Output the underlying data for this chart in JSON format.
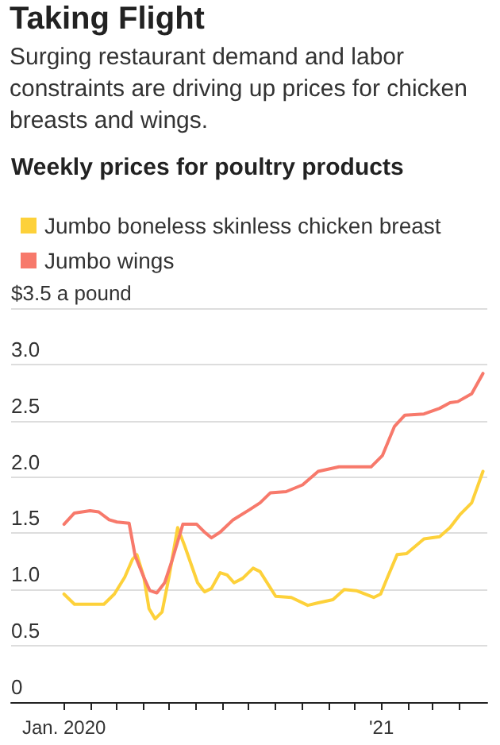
{
  "chart_data": {
    "type": "line",
    "title": "Taking Flight",
    "subtitle": "Surging restaurant demand and labor constraints are driving up prices for chicken breasts and wings.",
    "annotations": [
      "Weekly prices for poultry products"
    ],
    "legend": "top left",
    "grid": "y",
    "marker": "none",
    "line_style": "solid",
    "xlim": [
      "2019-11-01",
      "2021-05-03"
    ],
    "xticks": [
      {
        "value": "2020-01-01",
        "label": "Jan. 2020"
      },
      {
        "value": "2020-02-01",
        "label": null
      },
      {
        "value": "2020-03-01",
        "label": null
      },
      {
        "value": "2020-04-01",
        "label": null
      },
      {
        "value": "2020-05-01",
        "label": null
      },
      {
        "value": "2020-06-01",
        "label": null
      },
      {
        "value": "2020-07-01",
        "label": null
      },
      {
        "value": "2020-08-01",
        "label": null
      },
      {
        "value": "2020-09-01",
        "label": null
      },
      {
        "value": "2020-10-01",
        "label": null
      },
      {
        "value": "2020-11-01",
        "label": null
      },
      {
        "value": "2020-12-01",
        "label": null
      },
      {
        "value": "2021-01-01",
        "label": "'21"
      },
      {
        "value": "2021-02-01",
        "label": null
      },
      {
        "value": "2021-03-01",
        "label": null
      },
      {
        "value": "2021-04-01",
        "label": null
      }
    ],
    "ylim": [
      0,
      3.5
    ],
    "yticks": [
      0,
      0.5,
      {
        "value": 1,
        "label": "1.0"
      },
      1.5,
      {
        "value": 2,
        "label": "2.0"
      },
      2.5,
      {
        "value": 3,
        "label": "3.0"
      },
      {
        "value": 3.5,
        "label": "$3.5 a pound"
      }
    ],
    "series": [
      {
        "name": "Jumbo boneless skinless chicken breast",
        "color": "#fdd13a",
        "x": [
          "2020-01-01",
          "2020-01-13",
          "2020-02-16",
          "2020-02-28",
          "2020-03-11",
          "2020-03-20",
          "2020-03-25",
          "2020-04-02",
          "2020-04-08",
          "2020-04-15",
          "2020-04-23",
          "2020-05-01",
          "2020-05-11",
          "2020-05-19",
          "2020-06-03",
          "2020-06-11",
          "2020-06-19",
          "2020-06-29",
          "2020-07-07",
          "2020-07-15",
          "2020-07-25",
          "2020-08-06",
          "2020-08-14",
          "2020-09-01",
          "2020-09-19",
          "2020-10-08",
          "2020-10-19",
          "2020-11-06",
          "2020-11-19",
          "2020-12-03",
          "2020-12-23",
          "2020-12-31",
          "2021-01-08",
          "2021-01-19",
          "2021-01-30",
          "2021-02-19",
          "2021-03-09",
          "2021-03-21",
          "2021-04-02",
          "2021-04-15",
          "2021-04-28"
        ],
        "values": [
          0.96,
          0.87,
          0.87,
          0.96,
          1.11,
          1.27,
          1.31,
          1.11,
          0.83,
          0.74,
          0.8,
          1.11,
          1.55,
          1.39,
          1.06,
          0.98,
          1.01,
          1.15,
          1.13,
          1.06,
          1.1,
          1.19,
          1.16,
          0.94,
          0.93,
          0.86,
          0.88,
          0.91,
          1.0,
          0.99,
          0.93,
          0.96,
          1.11,
          1.31,
          1.32,
          1.45,
          1.47,
          1.55,
          1.67,
          1.77,
          2.05
        ]
      },
      {
        "name": "Jumbo wings",
        "color": "#f7796b",
        "x": [
          "2020-01-01",
          "2020-01-13",
          "2020-01-31",
          "2020-02-10",
          "2020-02-22",
          "2020-03-02",
          "2020-03-16",
          "2020-03-23",
          "2020-04-02",
          "2020-04-09",
          "2020-04-17",
          "2020-04-26",
          "2020-05-05",
          "2020-05-17",
          "2020-06-02",
          "2020-06-11",
          "2020-06-19",
          "2020-06-29",
          "2020-07-14",
          "2020-08-02",
          "2020-08-14",
          "2020-08-26",
          "2020-09-13",
          "2020-10-02",
          "2020-10-20",
          "2020-11-13",
          "2020-12-20",
          "2021-01-02",
          "2021-01-16",
          "2021-01-28",
          "2021-02-19",
          "2021-03-09",
          "2021-03-21",
          "2021-03-30",
          "2021-04-15",
          "2021-04-28"
        ],
        "values": [
          1.58,
          1.68,
          1.7,
          1.69,
          1.62,
          1.6,
          1.59,
          1.3,
          1.11,
          0.99,
          0.97,
          1.06,
          1.27,
          1.58,
          1.58,
          1.51,
          1.46,
          1.51,
          1.62,
          1.71,
          1.77,
          1.86,
          1.87,
          1.93,
          2.05,
          2.09,
          2.09,
          2.19,
          2.45,
          2.55,
          2.56,
          2.61,
          2.66,
          2.67,
          2.74,
          2.92
        ]
      }
    ]
  }
}
